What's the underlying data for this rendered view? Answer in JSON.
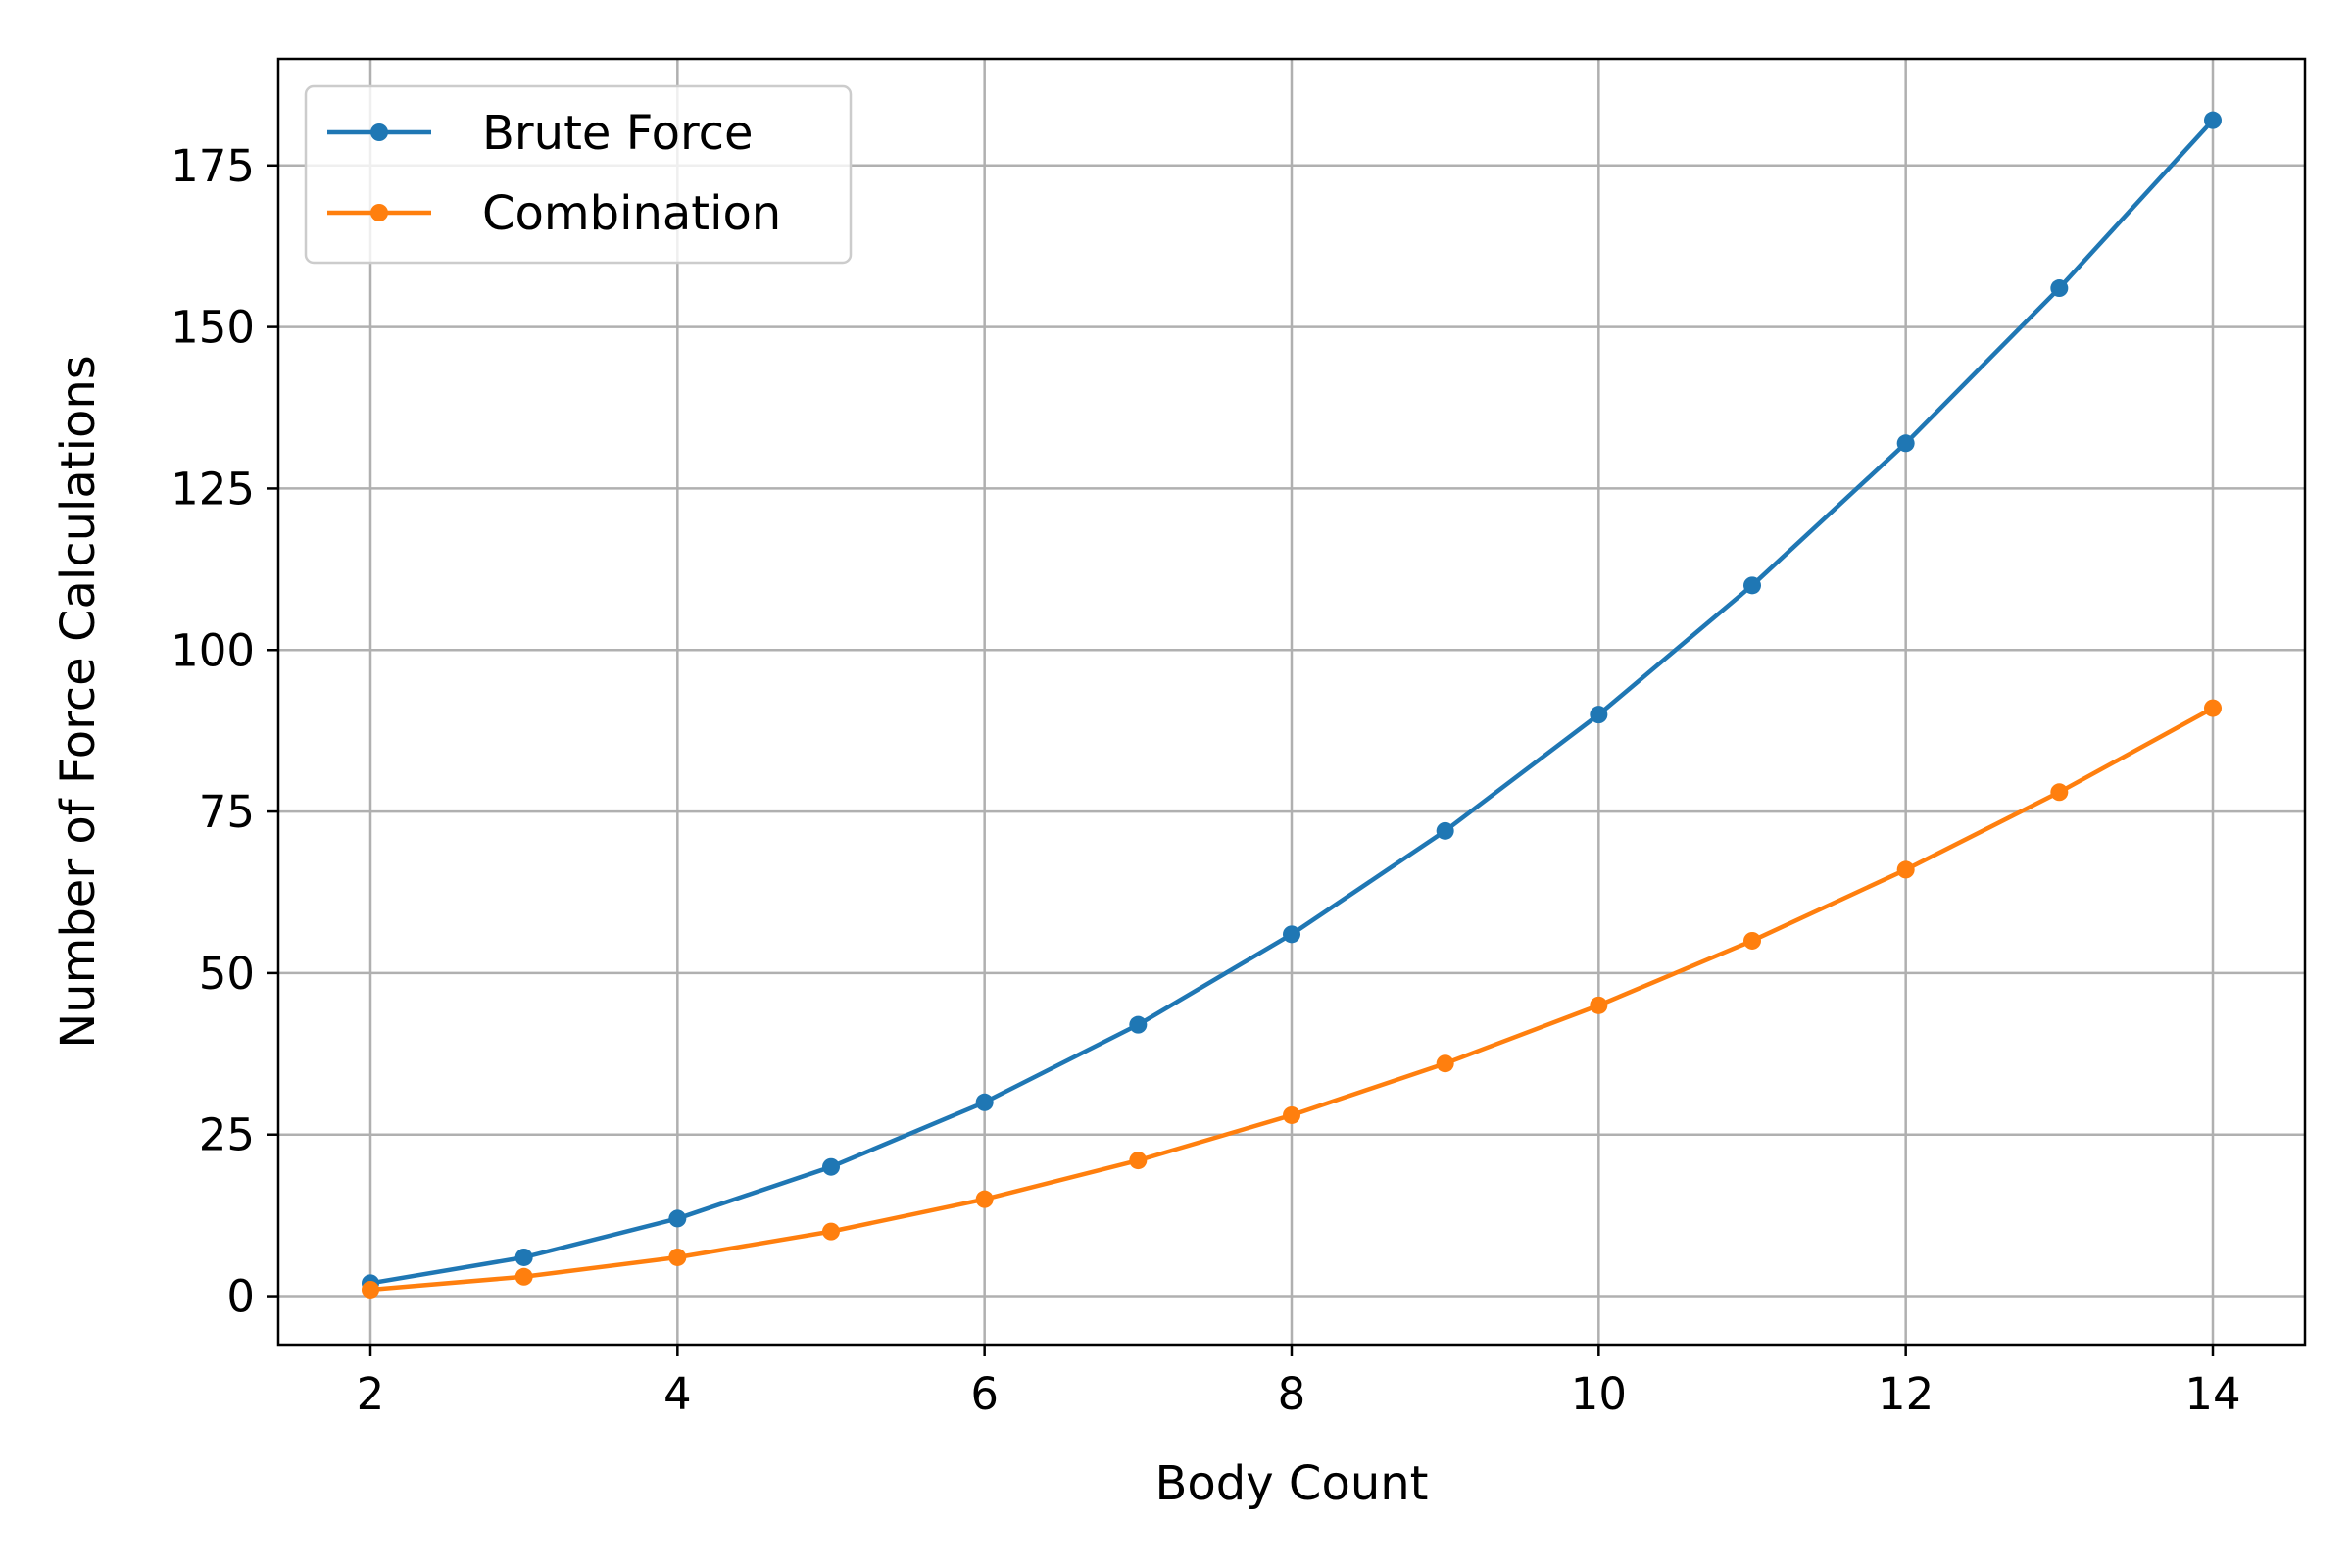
{
  "chart_data": {
    "type": "line",
    "title": "",
    "xlabel": "Body Count",
    "ylabel": "Number of Force Calculations",
    "x": [
      2,
      3,
      4,
      5,
      6,
      7,
      8,
      9,
      10,
      11,
      12,
      13,
      14
    ],
    "xlim": [
      1.4,
      14.6
    ],
    "ylim": [
      -7.5,
      191.5
    ],
    "xticks": [
      2,
      4,
      6,
      8,
      10,
      12,
      14
    ],
    "yticks": [
      0,
      25,
      50,
      75,
      100,
      125,
      150,
      175
    ],
    "grid": true,
    "legend_position": "top-left",
    "series": [
      {
        "name": "Brute Force",
        "color": "#1f77b4",
        "marker": "circle",
        "values": [
          2,
          6,
          12,
          20,
          30,
          42,
          56,
          72,
          90,
          110,
          132,
          156,
          182
        ]
      },
      {
        "name": "Combination",
        "color": "#ff7f0e",
        "marker": "circle",
        "values": [
          1,
          3,
          6,
          10,
          15,
          21,
          28,
          36,
          45,
          55,
          66,
          78,
          91
        ]
      }
    ]
  }
}
